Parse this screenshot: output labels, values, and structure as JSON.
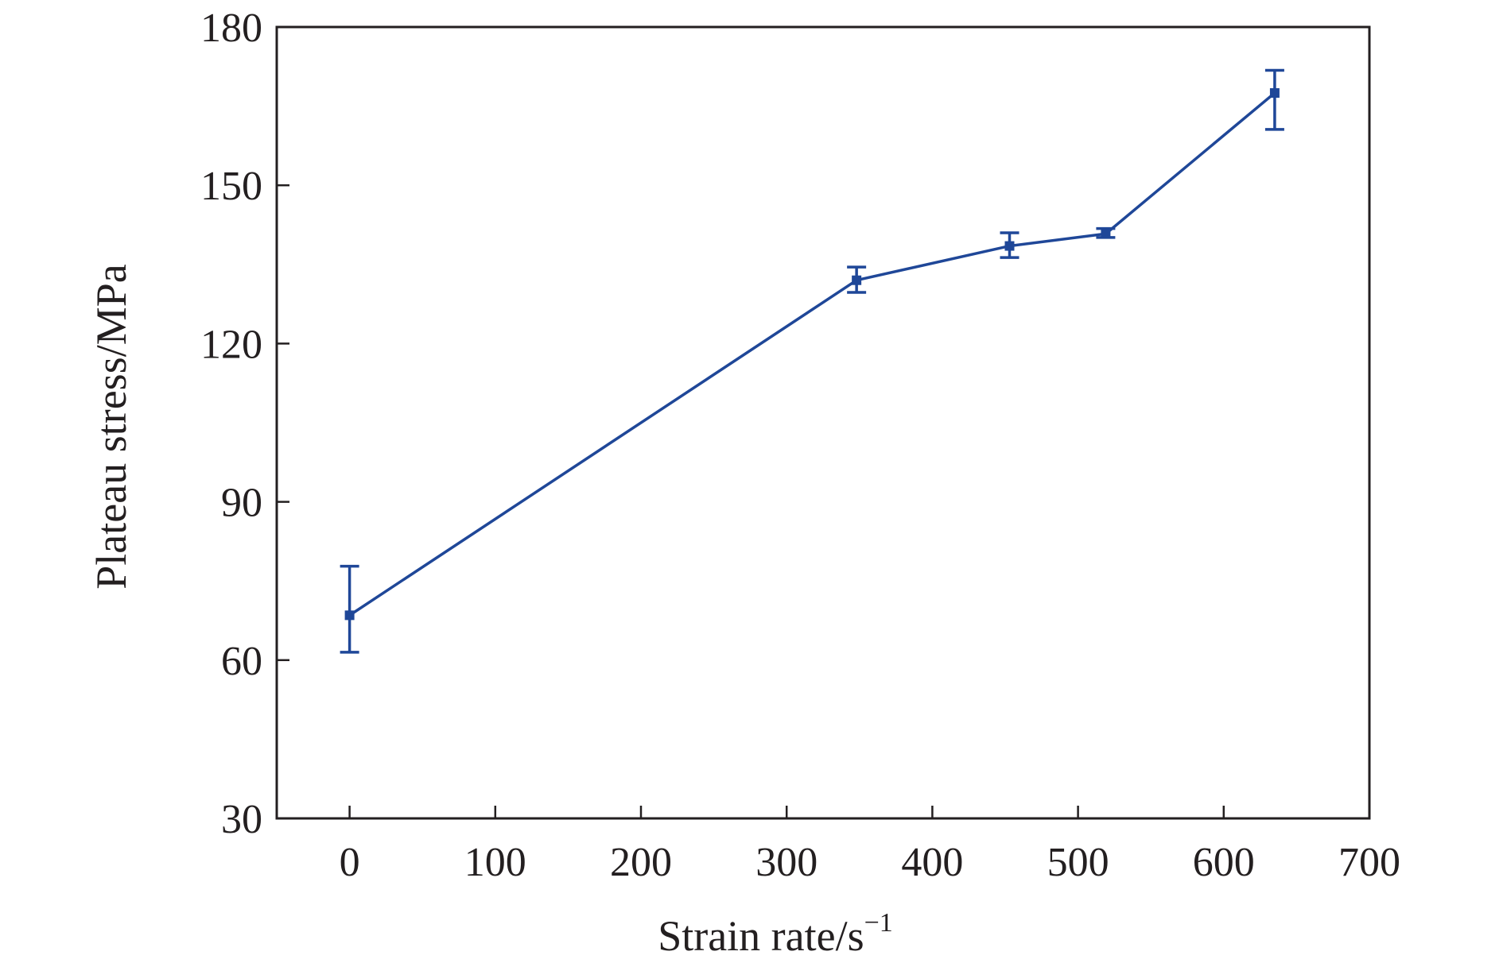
{
  "chart_data": {
    "type": "line",
    "xlabel": "Strain rate/s",
    "xlabel_sup": "−1",
    "ylabel": "Plateau stress/MPa",
    "xlim": [
      -50,
      700
    ],
    "ylim": [
      30,
      180
    ],
    "xticks": [
      "0",
      "100",
      "200",
      "300",
      "400",
      "500",
      "600",
      "700"
    ],
    "yticks": [
      "30",
      "60",
      "90",
      "120",
      "150",
      "180"
    ],
    "grid": false,
    "series": [
      {
        "x": [
          0,
          348,
          453,
          519,
          635
        ],
        "y": [
          68.5,
          132,
          138.5,
          140.8,
          167.5
        ],
        "err_low": [
          61.5,
          129.7,
          136.3,
          140.1,
          160.6
        ],
        "err_high": [
          77.8,
          134.5,
          141.0,
          141.8,
          171.8
        ]
      }
    ],
    "colors": {
      "series": "#1f4798",
      "axis": "#231f20"
    }
  }
}
